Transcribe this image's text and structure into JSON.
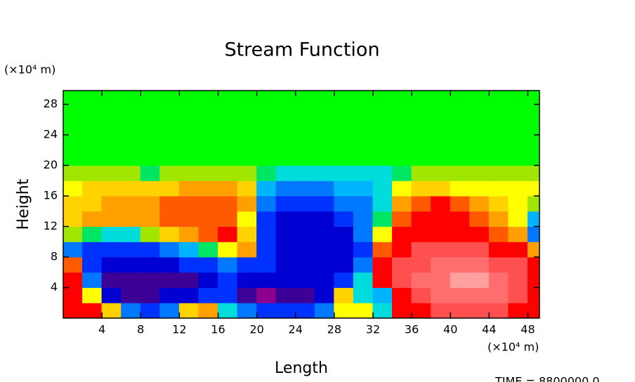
{
  "chart_data": {
    "type": "contour",
    "title": "Stream Function",
    "xlabel": "Length",
    "ylabel": "Height",
    "x_unit": "(×10⁴ m)",
    "y_unit": "(×10⁴ m)",
    "footer": "TIME = 8800000.0",
    "xlim": [
      0,
      49.2
    ],
    "ylim": [
      0,
      29.8
    ],
    "xticks": [
      4,
      8,
      12,
      16,
      20,
      24,
      28,
      32,
      36,
      40,
      44,
      48
    ],
    "yticks": [
      4,
      8,
      12,
      16,
      20,
      24,
      28
    ],
    "levels": [
      0,
      1,
      2,
      3,
      4,
      5,
      6,
      7,
      8,
      9,
      10,
      11,
      12,
      13,
      14,
      15,
      16,
      17
    ],
    "colors": [
      "#8c008c",
      "#3c0096",
      "#0000d2",
      "#0032ff",
      "#0078ff",
      "#00b4ff",
      "#00dcdc",
      "#00e664",
      "#00ff00",
      "#a0e600",
      "#ffff00",
      "#ffd200",
      "#ffa000",
      "#ff5a00",
      "#ff0000",
      "#ff5050",
      "#ff6e6e",
      "#ffa0a0"
    ],
    "x": [
      1,
      3,
      5,
      7,
      9,
      11,
      13,
      15,
      17,
      19,
      21,
      23,
      25,
      27,
      29,
      31,
      33,
      35,
      37,
      39,
      41,
      43,
      45,
      47,
      49
    ],
    "y": [
      1,
      3,
      5,
      7,
      9,
      11,
      13,
      15,
      17,
      19,
      21,
      23,
      25,
      27,
      29
    ],
    "z": [
      [
        14,
        14,
        11,
        4,
        3,
        4,
        11,
        12,
        6,
        4,
        3,
        3,
        3,
        4,
        10,
        10,
        6,
        14,
        14,
        15,
        15,
        15,
        15,
        14,
        14
      ],
      [
        14,
        10,
        2,
        1,
        1,
        2,
        2,
        3,
        3,
        1,
        0,
        1,
        1,
        2,
        11,
        6,
        5,
        14,
        15,
        16,
        16,
        16,
        16,
        15,
        14
      ],
      [
        14,
        4,
        1,
        1,
        1,
        1,
        1,
        2,
        3,
        2,
        2,
        2,
        2,
        2,
        3,
        6,
        14,
        15,
        16,
        16,
        17,
        17,
        16,
        15,
        14
      ],
      [
        13,
        3,
        2,
        2,
        2,
        2,
        3,
        3,
        4,
        3,
        3,
        2,
        2,
        2,
        2,
        4,
        14,
        15,
        15,
        16,
        16,
        16,
        15,
        15,
        14
      ],
      [
        4,
        3,
        3,
        3,
        3,
        4,
        5,
        7,
        10,
        12,
        3,
        2,
        2,
        2,
        2,
        3,
        13,
        14,
        15,
        15,
        15,
        15,
        14,
        14,
        12
      ],
      [
        9,
        7,
        6,
        6,
        9,
        11,
        12,
        13,
        14,
        11,
        3,
        2,
        2,
        2,
        2,
        4,
        10,
        14,
        14,
        14,
        14,
        14,
        13,
        12,
        4
      ],
      [
        11,
        12,
        12,
        12,
        12,
        13,
        13,
        13,
        13,
        10,
        3,
        2,
        2,
        2,
        3,
        4,
        7,
        13,
        14,
        14,
        14,
        13,
        12,
        10,
        5
      ],
      [
        11,
        11,
        12,
        12,
        12,
        13,
        13,
        13,
        13,
        12,
        4,
        3,
        3,
        3,
        4,
        4,
        6,
        12,
        13,
        14,
        13,
        12,
        11,
        10,
        9
      ],
      [
        10,
        11,
        11,
        11,
        11,
        11,
        12,
        12,
        12,
        11,
        5,
        4,
        4,
        4,
        5,
        5,
        6,
        10,
        11,
        11,
        10,
        10,
        10,
        10,
        10
      ],
      [
        9,
        9,
        9,
        9,
        7,
        9,
        9,
        9,
        9,
        9,
        7,
        6,
        6,
        6,
        6,
        6,
        6,
        7,
        9,
        9,
        9,
        9,
        9,
        9,
        9
      ],
      [
        8,
        8,
        8,
        8,
        8,
        8,
        8,
        8,
        8,
        8,
        8,
        8,
        8,
        8,
        8,
        8,
        8,
        8,
        8,
        8,
        8,
        8,
        8,
        8,
        8
      ],
      [
        8,
        8,
        8,
        8,
        8,
        8,
        8,
        8,
        8,
        8,
        8,
        8,
        8,
        8,
        8,
        8,
        8,
        8,
        8,
        8,
        8,
        8,
        8,
        8,
        8
      ],
      [
        8,
        8,
        8,
        8,
        8,
        8,
        8,
        8,
        8,
        8,
        8,
        8,
        8,
        8,
        8,
        8,
        8,
        8,
        8,
        8,
        8,
        8,
        8,
        8,
        8
      ],
      [
        8,
        8,
        8,
        8,
        8,
        8,
        8,
        8,
        8,
        8,
        8,
        8,
        8,
        8,
        8,
        8,
        8,
        8,
        8,
        8,
        8,
        8,
        8,
        8,
        8
      ],
      [
        8,
        8,
        8,
        8,
        8,
        8,
        8,
        8,
        8,
        8,
        8,
        8,
        8,
        8,
        8,
        8,
        8,
        8,
        8,
        8,
        8,
        8,
        8,
        8,
        8
      ]
    ]
  }
}
